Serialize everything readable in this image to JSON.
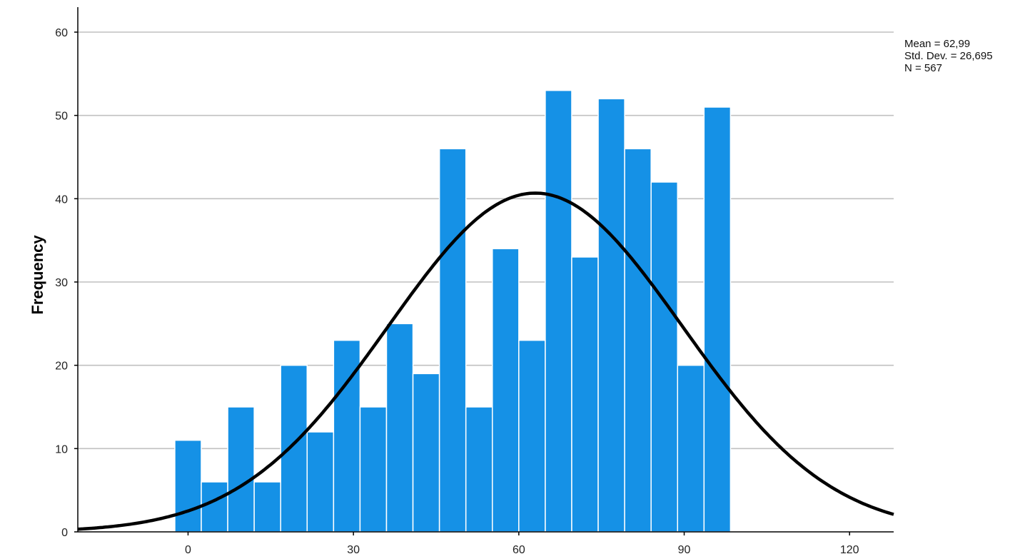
{
  "chart_data": {
    "type": "bar",
    "subtype": "histogram",
    "ylabel": "Frequency",
    "xlim": [
      -20,
      128
    ],
    "ylim": [
      0,
      63
    ],
    "x_ticks": [
      0,
      30,
      60,
      90,
      120
    ],
    "y_ticks": [
      0,
      10,
      20,
      30,
      40,
      50,
      60
    ],
    "bin_width": 4.8,
    "bin_starts": [
      -2.4,
      2.4,
      7.2,
      12.0,
      16.8,
      21.6,
      26.4,
      31.2,
      36.0,
      40.8,
      45.6,
      50.4,
      55.2,
      60.0,
      64.8,
      69.6,
      74.4,
      79.2,
      84.0,
      88.8,
      93.6,
      98.4
    ],
    "values": [
      11,
      6,
      15,
      6,
      20,
      12,
      23,
      15,
      25,
      19,
      46,
      15,
      34,
      23,
      53,
      33,
      52,
      46,
      42,
      20,
      51
    ],
    "stats": {
      "mean_label": "Mean = 62,99",
      "sd_label": "Std. Dev. = 26,695",
      "n_label": "N = 567"
    },
    "normal_curve": {
      "mean": 62.99,
      "sd": 26.695,
      "n": 567
    },
    "grid": "horizontal",
    "colors": {
      "bar": "#1591e6",
      "bar_edge": "#ffffff",
      "curve": "#000000",
      "grid": "#c0c0c0",
      "axis": "#000000"
    }
  }
}
